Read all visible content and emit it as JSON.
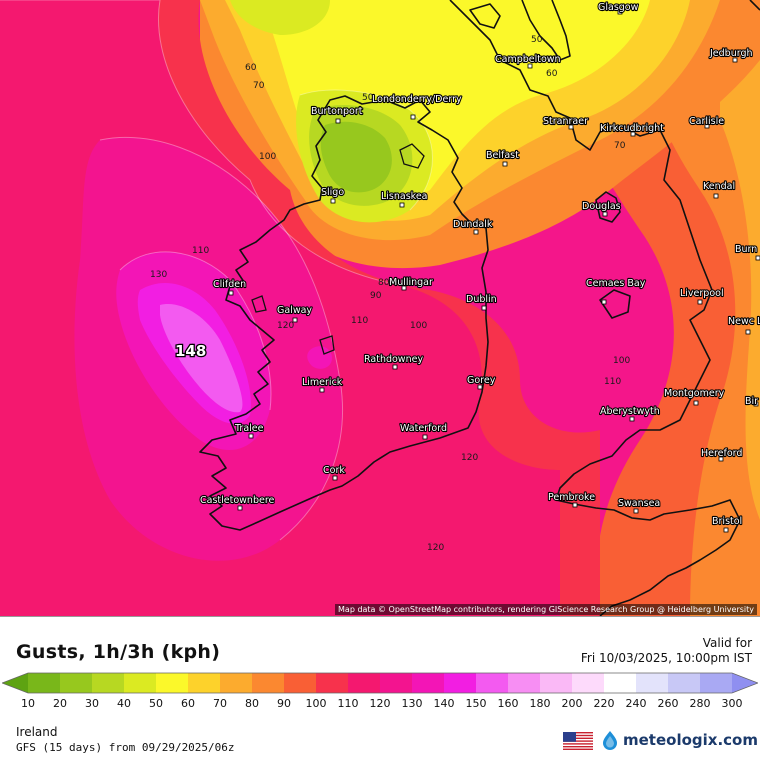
{
  "map": {
    "attribution": "Map data © OpenStreetMap contributors, rendering GIScience Research Group @ Heidelberg University",
    "max_label": "148",
    "cities": [
      {
        "name": "Glasgow"
      },
      {
        "name": "Campbeltown"
      },
      {
        "name": "Jedburgh"
      },
      {
        "name": "Burtonport"
      },
      {
        "name": "Londonderry/Derry"
      },
      {
        "name": "Stranraer"
      },
      {
        "name": "Kirkcudbright"
      },
      {
        "name": "Carlisle"
      },
      {
        "name": "Belfast"
      },
      {
        "name": "Sligo"
      },
      {
        "name": "Lisnaskea"
      },
      {
        "name": "Kendal"
      },
      {
        "name": "Douglas"
      },
      {
        "name": "Dundalk"
      },
      {
        "name": "Burn"
      },
      {
        "name": "Mullingar"
      },
      {
        "name": "Clifden"
      },
      {
        "name": "Cemaes Bay"
      },
      {
        "name": "Dublin"
      },
      {
        "name": "Liverpool"
      },
      {
        "name": "Galway"
      },
      {
        "name": "Newc Lym"
      },
      {
        "name": "Rathdowney"
      },
      {
        "name": "Limerick"
      },
      {
        "name": "Gorey"
      },
      {
        "name": "Montgomery"
      },
      {
        "name": "Bir"
      },
      {
        "name": "Aberystwyth"
      },
      {
        "name": "Tralee"
      },
      {
        "name": "Waterford"
      },
      {
        "name": "Hereford"
      },
      {
        "name": "Cork"
      },
      {
        "name": "Castletownbere"
      },
      {
        "name": "Pembroke"
      },
      {
        "name": "Swansea"
      },
      {
        "name": "Bristol"
      }
    ],
    "contour_labels": [
      "50",
      "60",
      "60",
      "70",
      "50",
      "70",
      "100",
      "110",
      "130",
      "80",
      "90",
      "110",
      "100",
      "120",
      "100",
      "110",
      "120",
      "120"
    ]
  },
  "legend": {
    "title": "Gusts, 1h/3h (kph)",
    "valid_label": "Valid for",
    "valid_time": "Fri 10/03/2025, 10:00pm IST",
    "ticks": [
      "10",
      "20",
      "30",
      "40",
      "50",
      "60",
      "70",
      "80",
      "90",
      "100",
      "110",
      "120",
      "130",
      "140",
      "150",
      "160",
      "180",
      "200",
      "220",
      "240",
      "260",
      "280",
      "300"
    ],
    "colors": [
      "#5ea312",
      "#79b71a",
      "#97c81e",
      "#b7d822",
      "#dbea22",
      "#fbf82a",
      "#fdd22b",
      "#fcab2e",
      "#fb8830",
      "#f95f35",
      "#f7324c",
      "#f4186f",
      "#f3148f",
      "#f315b6",
      "#f21ee2",
      "#f35af0",
      "#f78ef3",
      "#fab9f6",
      "#fddafb",
      "#ffffff",
      "#e3e3fb",
      "#c8c8f6",
      "#a9a9f3",
      "#8f8ff0"
    ]
  },
  "footer": {
    "region": "Ireland",
    "model": "GFS (15 days) from 09/29/2025/06z",
    "brand": "meteologix.com"
  }
}
